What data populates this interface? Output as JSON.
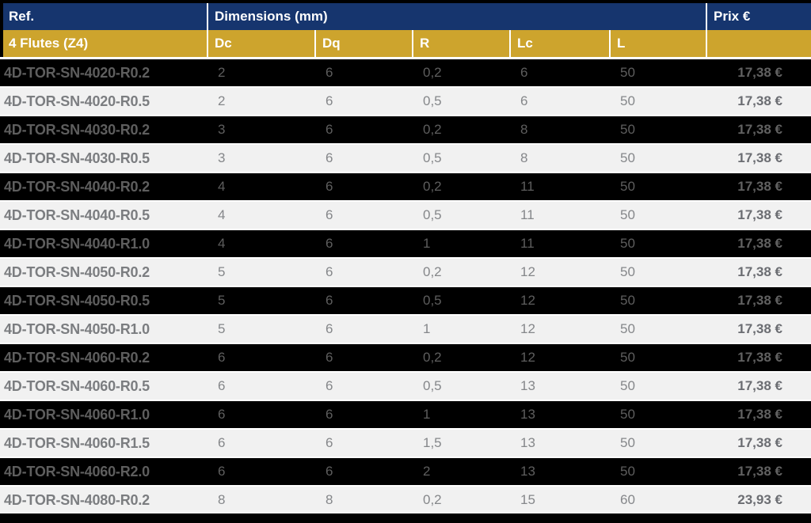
{
  "table": {
    "header": {
      "ref": "Ref.",
      "dimensions": "Dimensions (mm)",
      "prix": "Prix €"
    },
    "subheader": {
      "flutes": "4 Flutes (Z4)",
      "cols": [
        "Dc",
        "Dq",
        "R",
        "Lc",
        "L"
      ]
    },
    "rows": [
      {
        "ref": "4D-TOR-SN-4020-R0.2",
        "dc": "2",
        "dq": "6",
        "r": "0,2",
        "lc": "6",
        "l": "50",
        "prix": "17,38 €"
      },
      {
        "ref": "4D-TOR-SN-4020-R0.5",
        "dc": "2",
        "dq": "6",
        "r": "0,5",
        "lc": "6",
        "l": "50",
        "prix": "17,38 €"
      },
      {
        "ref": "4D-TOR-SN-4030-R0.2",
        "dc": "3",
        "dq": "6",
        "r": "0,2",
        "lc": "8",
        "l": "50",
        "prix": "17,38 €"
      },
      {
        "ref": "4D-TOR-SN-4030-R0.5",
        "dc": "3",
        "dq": "6",
        "r": "0,5",
        "lc": "8",
        "l": "50",
        "prix": "17,38 €"
      },
      {
        "ref": "4D-TOR-SN-4040-R0.2",
        "dc": "4",
        "dq": "6",
        "r": "0,2",
        "lc": "11",
        "l": "50",
        "prix": "17,38 €"
      },
      {
        "ref": "4D-TOR-SN-4040-R0.5",
        "dc": "4",
        "dq": "6",
        "r": "0,5",
        "lc": "11",
        "l": "50",
        "prix": "17,38 €"
      },
      {
        "ref": "4D-TOR-SN-4040-R1.0",
        "dc": "4",
        "dq": "6",
        "r": "1",
        "lc": "11",
        "l": "50",
        "prix": "17,38 €"
      },
      {
        "ref": "4D-TOR-SN-4050-R0.2",
        "dc": "5",
        "dq": "6",
        "r": "0,2",
        "lc": "12",
        "l": "50",
        "prix": "17,38 €"
      },
      {
        "ref": "4D-TOR-SN-4050-R0.5",
        "dc": "5",
        "dq": "6",
        "r": "0,5",
        "lc": "12",
        "l": "50",
        "prix": "17,38 €"
      },
      {
        "ref": "4D-TOR-SN-4050-R1.0",
        "dc": "5",
        "dq": "6",
        "r": "1",
        "lc": "12",
        "l": "50",
        "prix": "17,38 €"
      },
      {
        "ref": "4D-TOR-SN-4060-R0.2",
        "dc": "6",
        "dq": "6",
        "r": "0,2",
        "lc": "12",
        "l": "50",
        "prix": "17,38 €"
      },
      {
        "ref": "4D-TOR-SN-4060-R0.5",
        "dc": "6",
        "dq": "6",
        "r": "0,5",
        "lc": "13",
        "l": "50",
        "prix": "17,38 €"
      },
      {
        "ref": "4D-TOR-SN-4060-R1.0",
        "dc": "6",
        "dq": "6",
        "r": "1",
        "lc": "13",
        "l": "50",
        "prix": "17,38 €"
      },
      {
        "ref": "4D-TOR-SN-4060-R1.5",
        "dc": "6",
        "dq": "6",
        "r": "1,5",
        "lc": "13",
        "l": "50",
        "prix": "17,38 €"
      },
      {
        "ref": "4D-TOR-SN-4060-R2.0",
        "dc": "6",
        "dq": "6",
        "r": "2",
        "lc": "13",
        "l": "50",
        "prix": "17,38 €"
      },
      {
        "ref": "4D-TOR-SN-4080-R0.2",
        "dc": "8",
        "dq": "8",
        "r": "0,2",
        "lc": "15",
        "l": "60",
        "prix": "23,93 €"
      }
    ]
  },
  "colors": {
    "header_navy": "#16356e",
    "header_gold": "#cda42d",
    "row_dark": "#000000",
    "row_light": "#f1f1f1",
    "header_text": "#ffffff",
    "separator_white": "#ffffff"
  }
}
